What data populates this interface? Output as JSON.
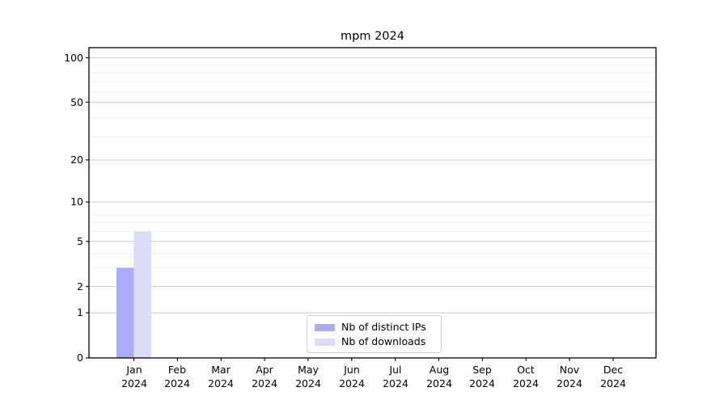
{
  "chart_data": {
    "type": "bar",
    "title": "mpm 2024",
    "categories": [
      "Jan 2024",
      "Feb 2024",
      "Mar 2024",
      "Apr 2024",
      "May 2024",
      "Jun 2024",
      "Jul 2024",
      "Aug 2024",
      "Sep 2024",
      "Oct 2024",
      "Nov 2024",
      "Dec 2024"
    ],
    "series": [
      {
        "name": "Nb of distinct IPs",
        "color": "#acabf5",
        "values": [
          3,
          0,
          0,
          0,
          0,
          0,
          0,
          0,
          0,
          0,
          0,
          0
        ]
      },
      {
        "name": "Nb of downloads",
        "color": "#dcdbf8",
        "values": [
          6,
          0,
          0,
          0,
          0,
          0,
          0,
          0,
          0,
          0,
          0,
          0
        ]
      }
    ],
    "xlabel": "",
    "ylabel": "",
    "yscale": "log1p",
    "yticks": [
      0,
      1,
      2,
      5,
      10,
      20,
      50,
      100
    ],
    "ylim": [
      0,
      117
    ],
    "grid": "both",
    "legend_position": "lower center",
    "colors": {
      "spine": "#000000",
      "grid_major": "#cccccc",
      "grid_minor": "#efefef",
      "background": "#ffffff"
    }
  }
}
